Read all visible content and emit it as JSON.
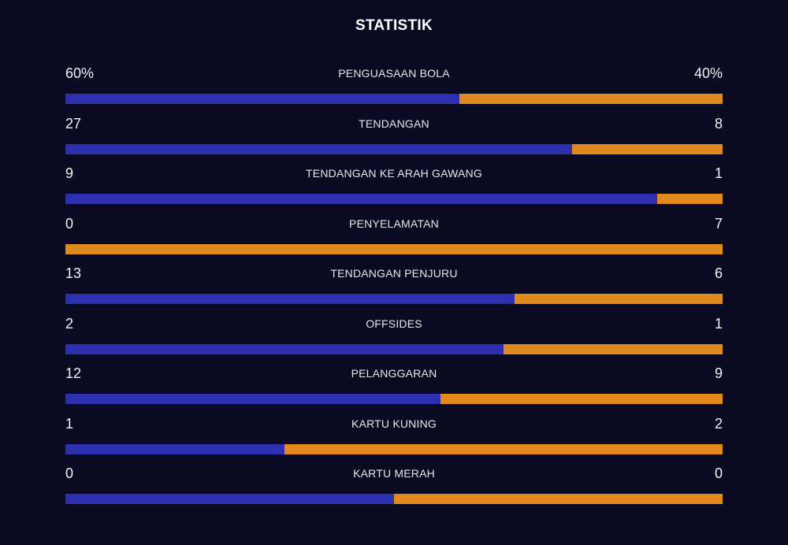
{
  "title": "STATISTIK",
  "colors": {
    "home": "#2b2fb0",
    "away": "#e0891d",
    "background": "#0a0a22"
  },
  "stats": [
    {
      "label": "PENGUASAAN BOLA",
      "home": "60%",
      "away": "40%",
      "home_share": 0.6
    },
    {
      "label": "TENDANGAN",
      "home": "27",
      "away": "8",
      "home_share": 0.771
    },
    {
      "label": "TENDANGAN KE ARAH GAWANG",
      "home": "9",
      "away": "1",
      "home_share": 0.9
    },
    {
      "label": "PENYELAMATAN",
      "home": "0",
      "away": "7",
      "home_share": 0.0
    },
    {
      "label": "TENDANGAN PENJURU",
      "home": "13",
      "away": "6",
      "home_share": 0.684
    },
    {
      "label": "OFFSIDES",
      "home": "2",
      "away": "1",
      "home_share": 0.667
    },
    {
      "label": "PELANGGARAN",
      "home": "12",
      "away": "9",
      "home_share": 0.571
    },
    {
      "label": "KARTU KUNING",
      "home": "1",
      "away": "2",
      "home_share": 0.333
    },
    {
      "label": "KARTU MERAH",
      "home": "0",
      "away": "0",
      "home_share": 0.5
    }
  ]
}
